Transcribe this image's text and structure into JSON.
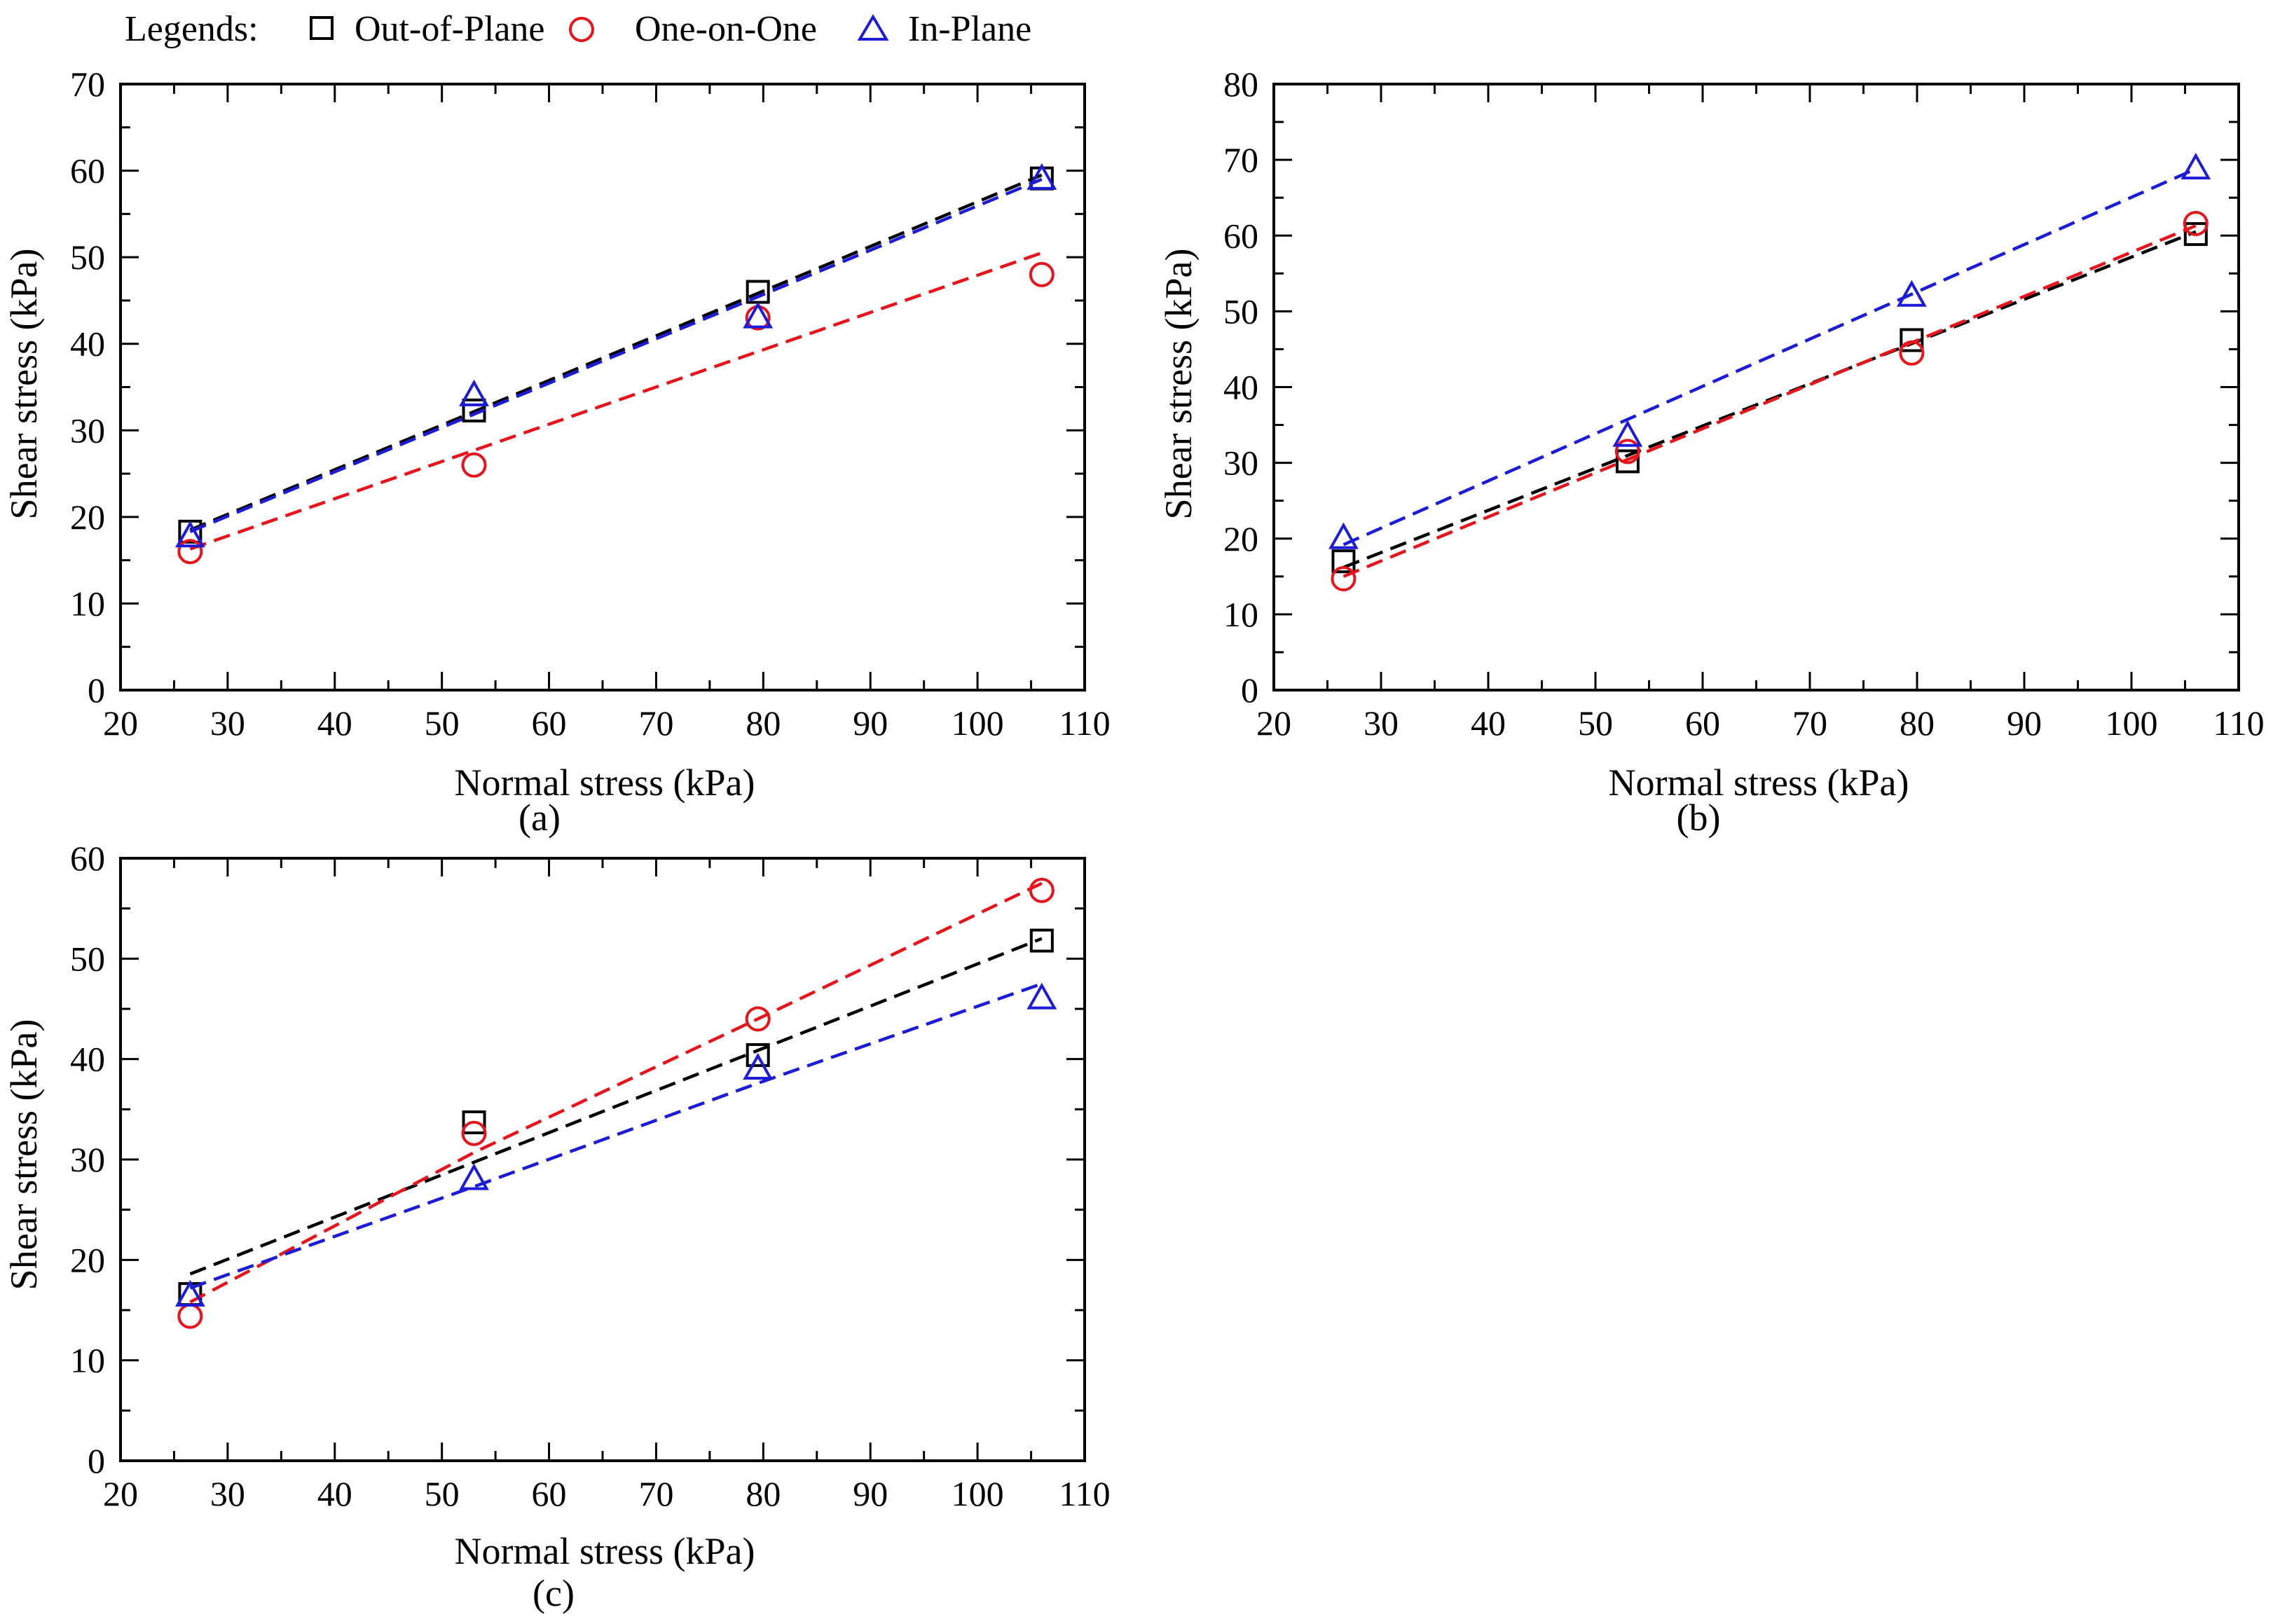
{
  "legend": {
    "title": "Legends:",
    "entries": [
      {
        "name": "Out-of-Plane",
        "color": "#000000",
        "marker": "square-icon"
      },
      {
        "name": "One-on-One",
        "color": "#e8141c",
        "marker": "circle-icon"
      },
      {
        "name": "In-Plane",
        "color": "#1c1cd8",
        "marker": "triangle-icon"
      }
    ]
  },
  "chart_data": [
    {
      "id": "a",
      "type": "scatter",
      "panel_label": "(a)",
      "xlabel": "Normal stress (kPa)",
      "ylabel": "Shear stress (kPa)",
      "xlim": [
        20,
        110
      ],
      "ylim": [
        0,
        70
      ],
      "xticks": [
        "20",
        "30",
        "40",
        "50",
        "60",
        "70",
        "80",
        "90",
        "100",
        "110"
      ],
      "yticks": [
        "0",
        "10",
        "20",
        "30",
        "40",
        "50",
        "60",
        "70"
      ],
      "series": [
        {
          "name": "Out-of-Plane",
          "color": "#000000",
          "marker": "square",
          "x": [
            26.5,
            53,
            79.5,
            106
          ],
          "y": [
            18.3,
            32.3,
            46,
            59.1
          ],
          "fit": [
            [
              26.5,
              18.5
            ],
            [
              106,
              59.5
            ]
          ]
        },
        {
          "name": "One-on-One",
          "color": "#e8141c",
          "marker": "circle",
          "x": [
            26.5,
            53,
            79.5,
            106
          ],
          "y": [
            16,
            26,
            43,
            48
          ],
          "fit": [
            [
              26.5,
              16.3
            ],
            [
              106,
              50.5
            ]
          ]
        },
        {
          "name": "In-Plane",
          "color": "#1c1cd8",
          "marker": "triangle",
          "x": [
            26.5,
            53,
            79.5,
            106
          ],
          "y": [
            17.7,
            34,
            43,
            59
          ],
          "fit": [
            [
              26.5,
              18.3
            ],
            [
              106,
              59
            ]
          ]
        }
      ]
    },
    {
      "id": "b",
      "type": "scatter",
      "panel_label": "(b)",
      "xlabel": "Normal stress (kPa)",
      "ylabel": "Shear stress (kPa)",
      "xlim": [
        20,
        110
      ],
      "ylim": [
        0,
        80
      ],
      "xticks": [
        "20",
        "30",
        "40",
        "50",
        "60",
        "70",
        "80",
        "90",
        "100",
        "110"
      ],
      "yticks": [
        "0",
        "10",
        "20",
        "30",
        "40",
        "50",
        "60",
        "70",
        "80"
      ],
      "series": [
        {
          "name": "Out-of-Plane",
          "color": "#000000",
          "marker": "square",
          "x": [
            26.5,
            53,
            79.5,
            106
          ],
          "y": [
            17,
            30.2,
            46.2,
            60.2
          ],
          "fit": [
            [
              26.5,
              16.2
            ],
            [
              106,
              60.5
            ]
          ]
        },
        {
          "name": "One-on-One",
          "color": "#e8141c",
          "marker": "circle",
          "x": [
            26.5,
            53,
            79.5,
            106
          ],
          "y": [
            14.7,
            31.5,
            44.5,
            61.6
          ],
          "fit": [
            [
              26.5,
              15
            ],
            [
              106,
              61.3
            ]
          ]
        },
        {
          "name": "In-Plane",
          "color": "#1c1cd8",
          "marker": "triangle",
          "x": [
            26.5,
            53,
            79.5,
            106
          ],
          "y": [
            20,
            33.5,
            52,
            68.8
          ],
          "fit": [
            [
              26.5,
              19.2
            ],
            [
              106,
              68.8
            ]
          ]
        }
      ]
    },
    {
      "id": "c",
      "type": "scatter",
      "panel_label": "(c)",
      "xlabel": "Normal stress (kPa)",
      "ylabel": "Shear stress (kPa)",
      "xlim": [
        20,
        110
      ],
      "ylim": [
        0,
        60
      ],
      "xticks": [
        "20",
        "30",
        "40",
        "50",
        "60",
        "70",
        "80",
        "90",
        "100",
        "110"
      ],
      "yticks": [
        "0",
        "10",
        "20",
        "30",
        "40",
        "50",
        "60"
      ],
      "series": [
        {
          "name": "Out-of-Plane",
          "color": "#000000",
          "marker": "square",
          "x": [
            26.5,
            53,
            79.5,
            106
          ],
          "y": [
            16.6,
            33.7,
            40.4,
            51.8
          ],
          "fit": [
            [
              26.5,
              18.6
            ],
            [
              106,
              52
            ]
          ]
        },
        {
          "name": "One-on-One",
          "color": "#e8141c",
          "marker": "circle",
          "x": [
            26.5,
            53,
            79.5,
            106
          ],
          "y": [
            14.4,
            32.6,
            44,
            56.8
          ],
          "fit": [
            [
              26.5,
              15.8
            ],
            [
              53,
              30.7
            ],
            [
              79.5,
              44
            ],
            [
              106,
              57.5
            ]
          ]
        },
        {
          "name": "In-Plane",
          "color": "#1c1cd8",
          "marker": "triangle",
          "x": [
            26.5,
            53,
            79.5,
            106
          ],
          "y": [
            16.4,
            28,
            39,
            46
          ],
          "fit": [
            [
              26.5,
              17.2
            ],
            [
              53,
              27.3
            ],
            [
              79.5,
              37.6
            ],
            [
              106,
              47.5
            ]
          ]
        }
      ]
    }
  ]
}
